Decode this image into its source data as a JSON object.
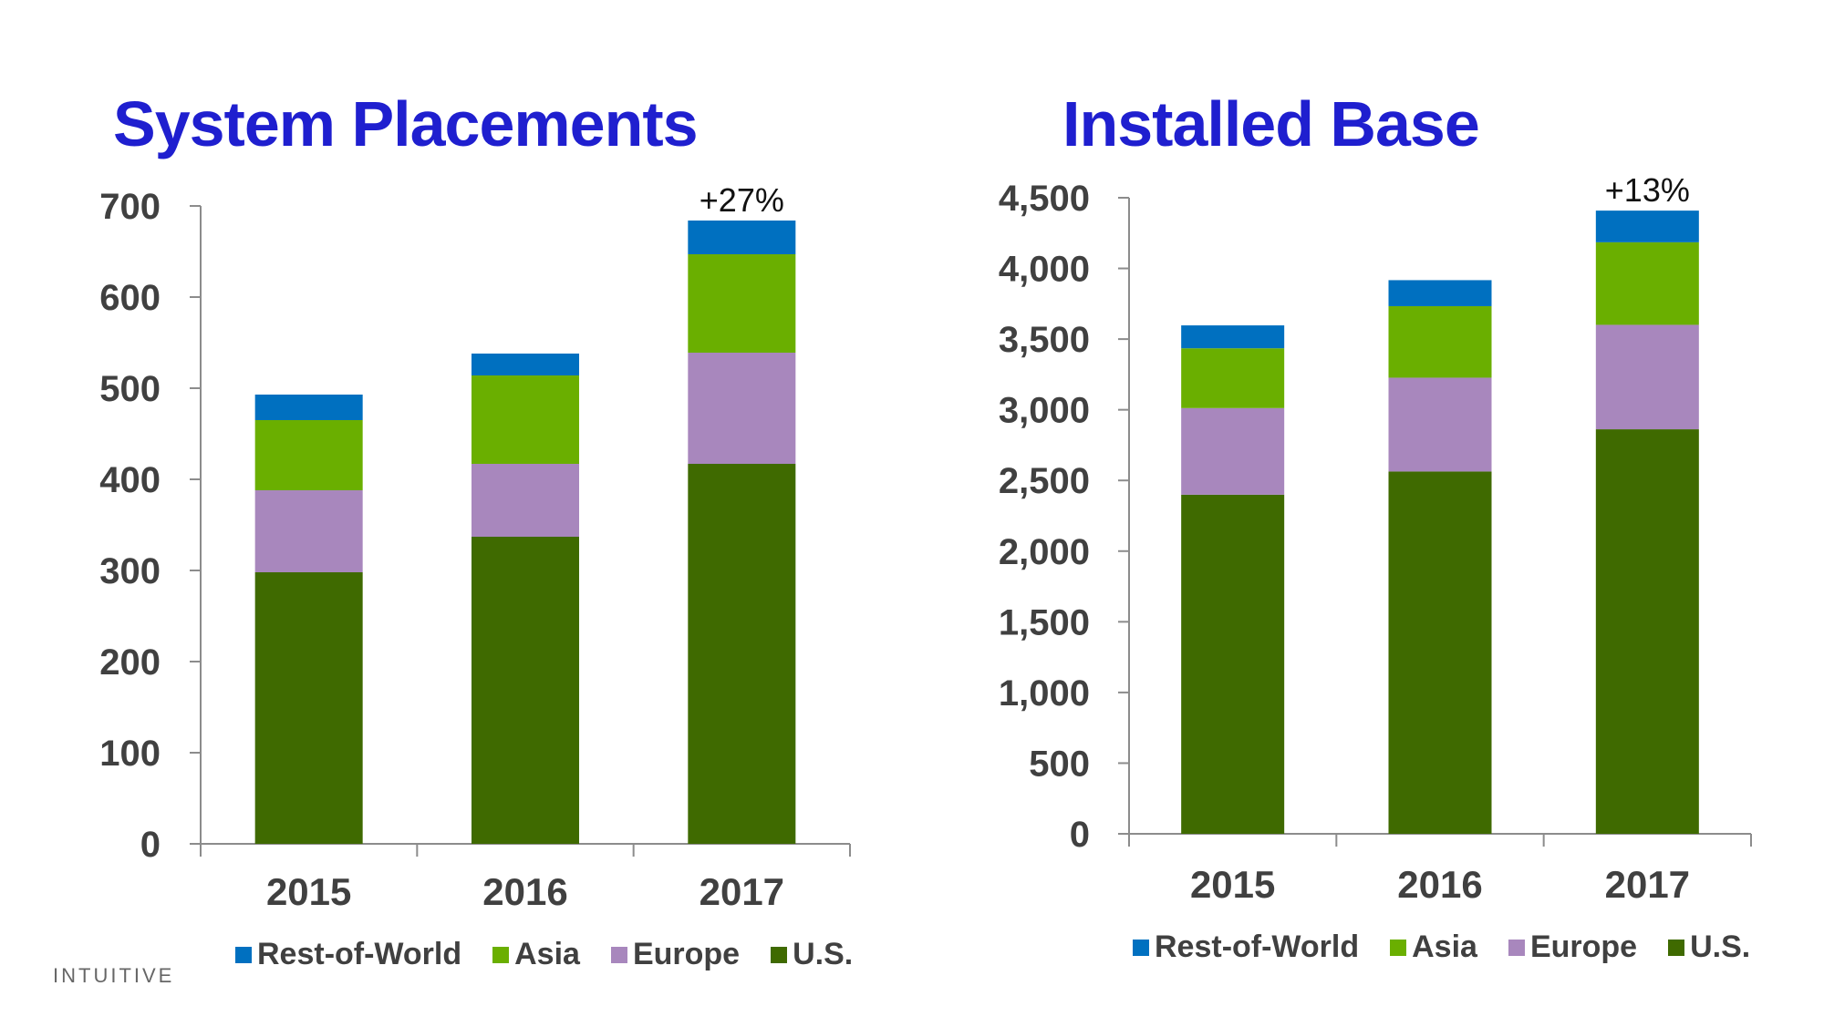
{
  "logo_text": "INTUITIVE",
  "chart_data": [
    {
      "type": "bar",
      "stacked": true,
      "title": "System Placements",
      "categories": [
        "2015",
        "2016",
        "2017"
      ],
      "series": [
        {
          "name": "U.S.",
          "color": "#3f6a00",
          "values": [
            298,
            337,
            417
          ]
        },
        {
          "name": "Europe",
          "color": "#a887bd",
          "values": [
            90,
            80,
            122
          ]
        },
        {
          "name": "Asia",
          "color": "#6aaf00",
          "values": [
            77,
            97,
            108
          ]
        },
        {
          "name": "Rest-of-World",
          "color": "#0070c0",
          "values": [
            28,
            24,
            37
          ]
        }
      ],
      "ylim": [
        0,
        700
      ],
      "yticks": [
        "0",
        "100",
        "200",
        "300",
        "400",
        "500",
        "600",
        "700"
      ],
      "annotations": [
        {
          "category": "2017",
          "text": "+27%"
        }
      ],
      "legend_position": "bottom",
      "legend_order": [
        "Rest-of-World",
        "Asia",
        "Europe",
        "U.S."
      ],
      "grid": false
    },
    {
      "type": "bar",
      "stacked": true,
      "title": "Installed Base",
      "categories": [
        "2015",
        "2016",
        "2017"
      ],
      "series": [
        {
          "name": "U.S.",
          "color": "#3f6a00",
          "values": [
            2399,
            2563,
            2862
          ]
        },
        {
          "name": "Europe",
          "color": "#a887bd",
          "values": [
            613,
            664,
            739
          ]
        },
        {
          "name": "Asia",
          "color": "#6aaf00",
          "values": [
            423,
            506,
            584
          ]
        },
        {
          "name": "Rest-of-World",
          "color": "#0070c0",
          "values": [
            162,
            184,
            224
          ]
        }
      ],
      "ylim": [
        0,
        4500
      ],
      "yticks": [
        "0",
        "500",
        "1,000",
        "1,500",
        "2,000",
        "2,500",
        "3,000",
        "3,500",
        "4,000",
        "4,500"
      ],
      "annotations": [
        {
          "category": "2017",
          "text": "+13%"
        }
      ],
      "legend_position": "bottom",
      "legend_order": [
        "Rest-of-World",
        "Asia",
        "Europe",
        "U.S."
      ],
      "grid": false
    }
  ]
}
